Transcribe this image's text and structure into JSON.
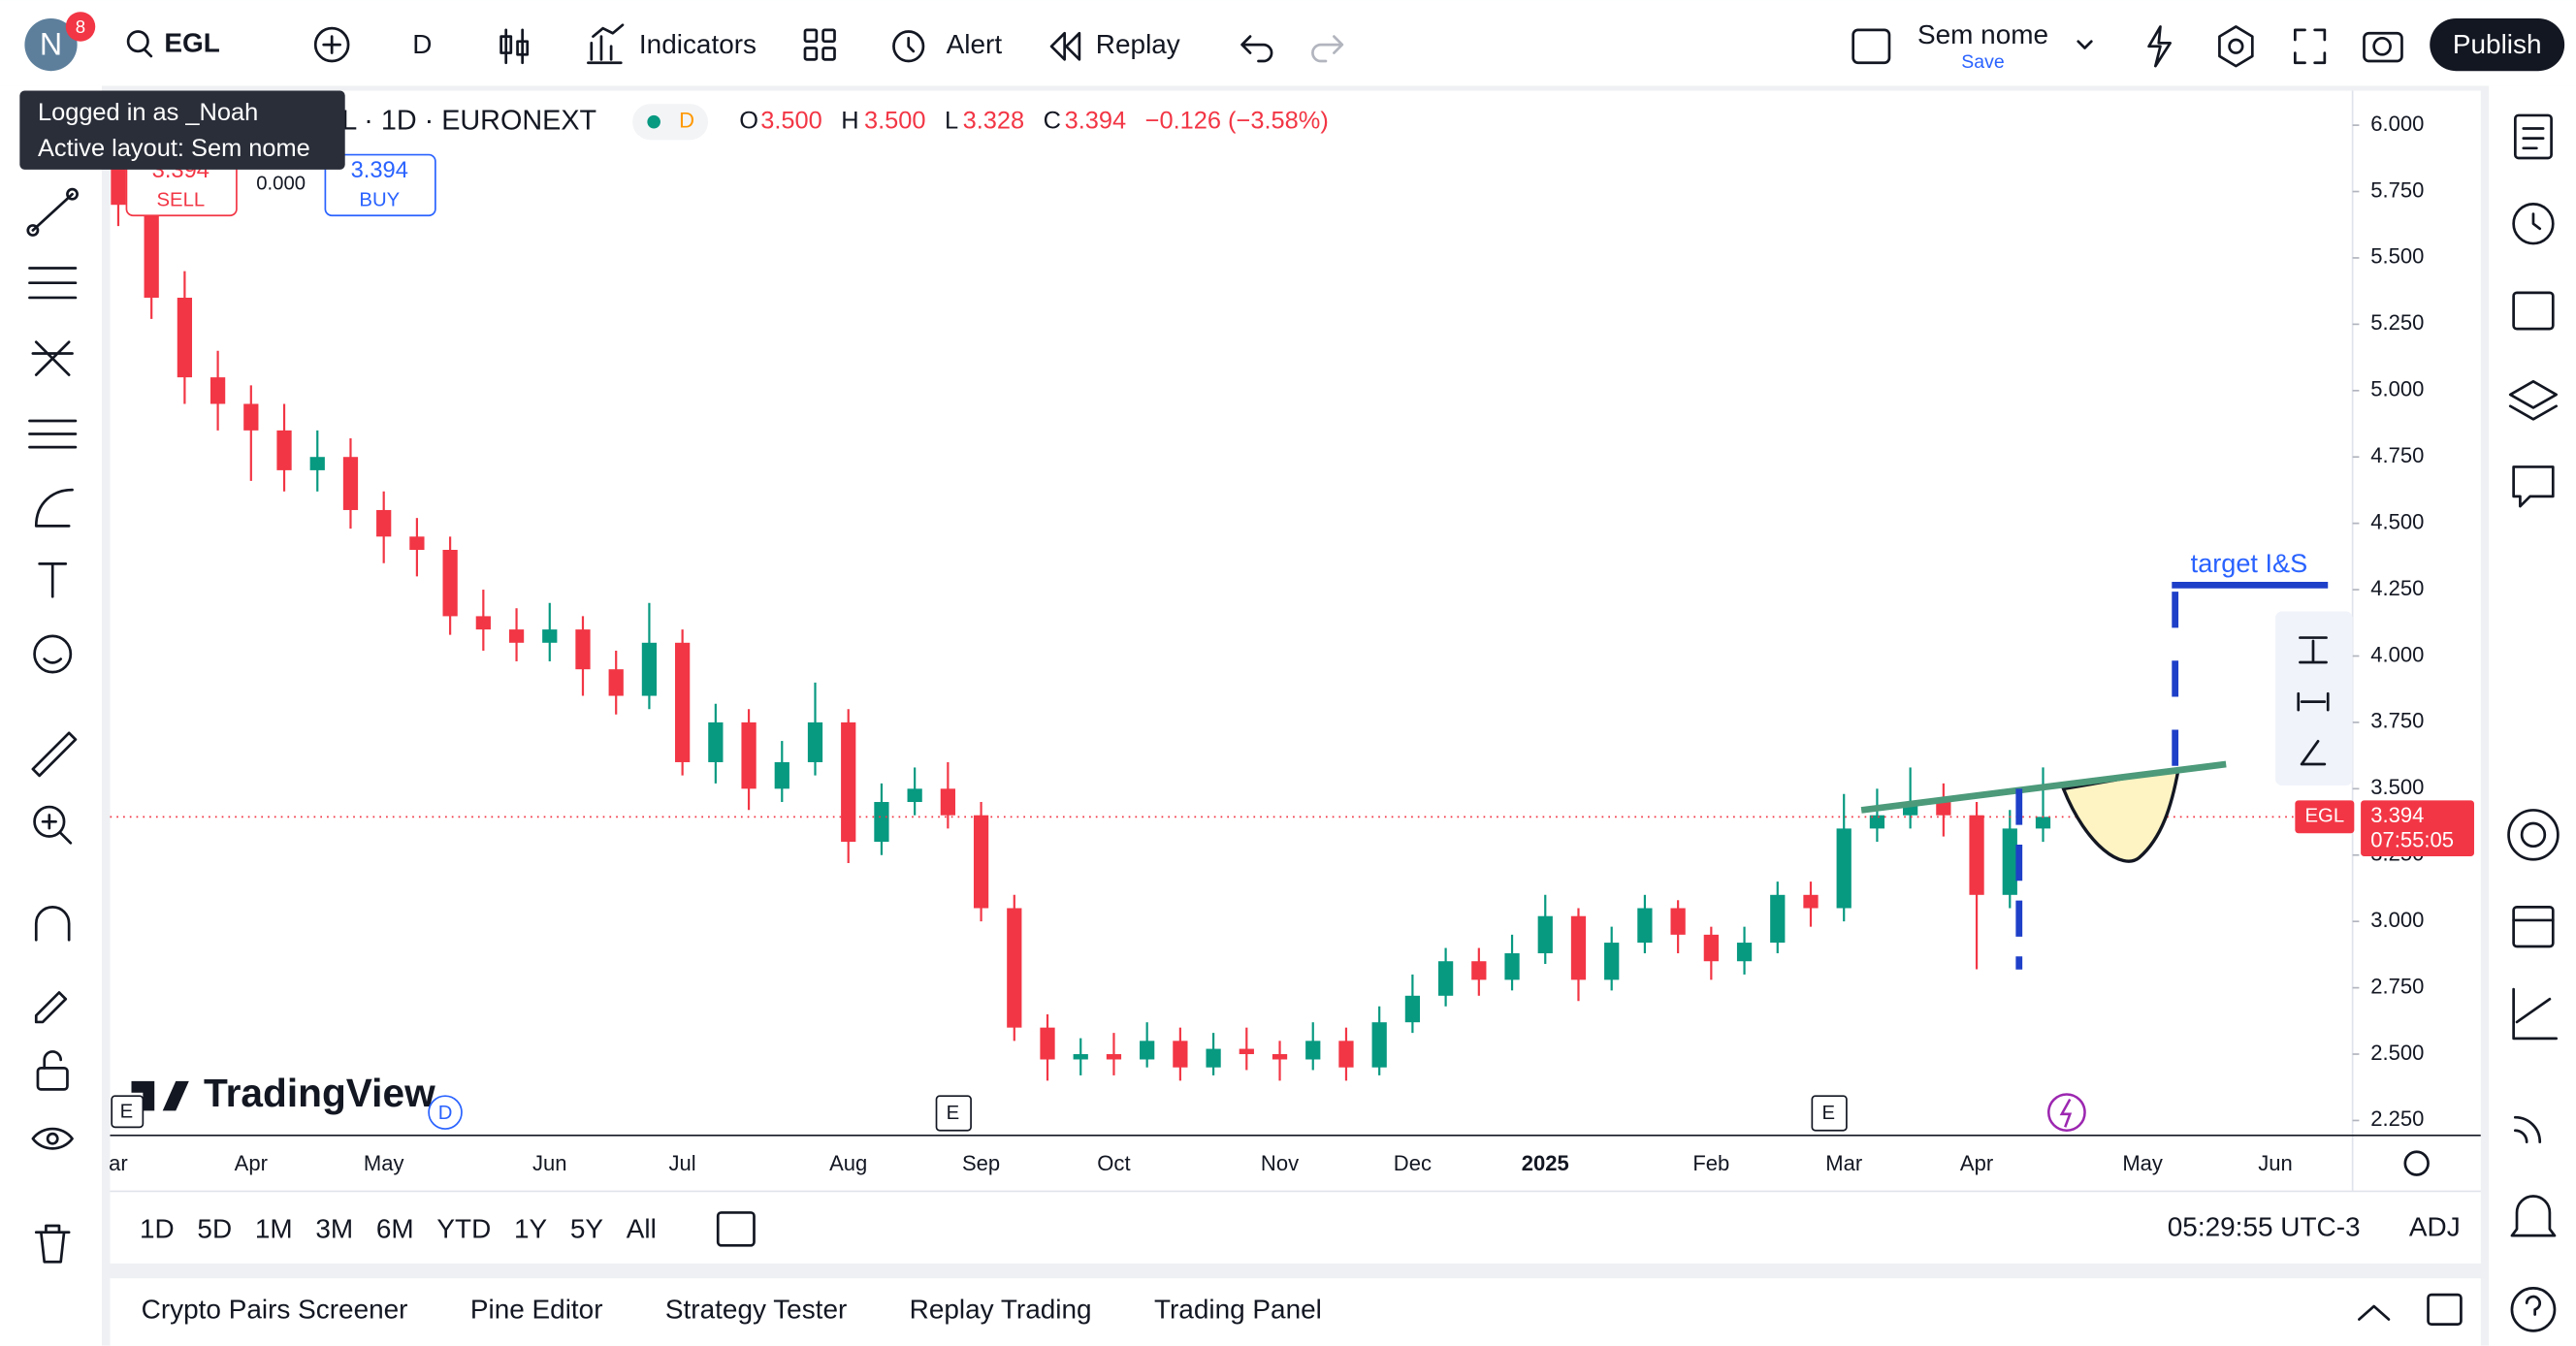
{
  "header": {
    "avatar": "N",
    "badge": "8",
    "symbol": "EGL",
    "interval": "D",
    "indicators": "Indicators",
    "alert": "Alert",
    "replay": "Replay",
    "layout_name": "Sem nome",
    "save": "Save",
    "publish": "Publish"
  },
  "tooltip": {
    "line1": "Logged in as _Noah",
    "line2": "Active layout: Sem nome"
  },
  "legend": {
    "title": "L · 1D · EURONEXT",
    "badge": "D",
    "o_label": "O",
    "o": "3.500",
    "h_label": "H",
    "h": "3.500",
    "l_label": "L",
    "l": "3.328",
    "c_label": "C",
    "c": "3.394",
    "change": "−0.126 (−3.58%)"
  },
  "trade": {
    "sell_price": "3.394",
    "sell": "SELL",
    "spread": "0.000",
    "buy_price": "3.394",
    "buy": "BUY"
  },
  "logo": "TradingView",
  "events": [
    "E",
    "D",
    "E",
    "E"
  ],
  "drawings": {
    "target_label": "target I&S"
  },
  "price_label": {
    "symbol": "EGL",
    "price": "3.394",
    "countdown": "07:55:05"
  },
  "chart_data": {
    "type": "candlestick",
    "up_color": "#089981",
    "down_color": "#f23645",
    "categories": [
      "ar",
      null,
      null,
      null,
      "Apr",
      null,
      null,
      null,
      "May",
      null,
      null,
      null,
      null,
      "Jun",
      null,
      null,
      null,
      "Jul",
      null,
      null,
      null,
      null,
      "Aug",
      null,
      null,
      null,
      "Sep",
      null,
      null,
      null,
      "Oct",
      null,
      null,
      null,
      null,
      "Nov",
      null,
      null,
      null,
      "Dec",
      null,
      null,
      null,
      "2025",
      null,
      null,
      null,
      null,
      "Feb",
      null,
      null,
      null,
      "Mar",
      null,
      null,
      null,
      "Apr",
      null,
      null,
      null,
      null,
      "May",
      null,
      null,
      null,
      "Jun"
    ],
    "series": [
      {
        "name": "EGL",
        "open": [
          6.0,
          5.7,
          5.35,
          5.05,
          4.95,
          4.85,
          4.7,
          4.75,
          4.55,
          4.45,
          4.4,
          4.15,
          4.1,
          4.05,
          4.1,
          3.95,
          3.85,
          4.05,
          3.6,
          3.75,
          3.5,
          3.6,
          3.75,
          3.3,
          3.45,
          3.5,
          3.4,
          3.05,
          2.6,
          2.48,
          2.5,
          2.48,
          2.55,
          2.45,
          2.52,
          2.5,
          2.48,
          2.55,
          2.45,
          2.62,
          2.72,
          2.85,
          2.78,
          2.88,
          3.02,
          2.78,
          2.92,
          3.05,
          2.95,
          2.85,
          2.92,
          3.1,
          3.05,
          3.35,
          3.4,
          3.45,
          3.4,
          3.1,
          3.35,
          null,
          null,
          null,
          null,
          null,
          null,
          null
        ],
        "high": [
          6.08,
          5.78,
          5.45,
          5.15,
          5.02,
          4.95,
          4.85,
          4.82,
          4.62,
          4.52,
          4.45,
          4.25,
          4.18,
          4.2,
          4.15,
          4.02,
          4.2,
          4.1,
          3.82,
          3.8,
          3.68,
          3.9,
          3.8,
          3.52,
          3.58,
          3.6,
          3.45,
          3.1,
          2.65,
          2.56,
          2.58,
          2.62,
          2.6,
          2.58,
          2.6,
          2.55,
          2.62,
          2.6,
          2.68,
          2.8,
          2.9,
          2.9,
          2.95,
          3.1,
          3.05,
          2.98,
          3.1,
          3.08,
          2.98,
          2.98,
          3.15,
          3.15,
          3.48,
          3.5,
          3.58,
          3.52,
          3.45,
          3.42,
          3.58,
          null,
          null,
          null,
          null,
          null,
          null,
          null
        ],
        "low": [
          5.62,
          5.27,
          4.95,
          4.85,
          4.66,
          4.62,
          4.62,
          4.48,
          4.35,
          4.3,
          4.08,
          4.02,
          3.98,
          3.98,
          3.85,
          3.78,
          3.8,
          3.55,
          3.52,
          3.42,
          3.45,
          3.55,
          3.22,
          3.25,
          3.4,
          3.35,
          3.0,
          2.55,
          2.4,
          2.42,
          2.42,
          2.45,
          2.4,
          2.42,
          2.44,
          2.4,
          2.44,
          2.4,
          2.42,
          2.58,
          2.68,
          2.72,
          2.74,
          2.84,
          2.7,
          2.74,
          2.88,
          2.88,
          2.78,
          2.8,
          2.88,
          2.98,
          3.0,
          3.3,
          3.35,
          3.32,
          2.82,
          3.05,
          3.3,
          null,
          null,
          null,
          null,
          null,
          null,
          null
        ],
        "close": [
          5.7,
          5.35,
          5.05,
          4.95,
          4.85,
          4.7,
          4.75,
          4.55,
          4.45,
          4.4,
          4.15,
          4.1,
          4.05,
          4.1,
          3.95,
          3.85,
          4.05,
          3.6,
          3.75,
          3.5,
          3.6,
          3.75,
          3.3,
          3.45,
          3.5,
          3.4,
          3.05,
          2.6,
          2.48,
          2.5,
          2.48,
          2.55,
          2.45,
          2.52,
          2.5,
          2.48,
          2.55,
          2.45,
          2.62,
          2.72,
          2.85,
          2.78,
          2.88,
          3.02,
          2.78,
          2.92,
          3.05,
          2.95,
          2.85,
          2.92,
          3.1,
          3.05,
          3.35,
          3.4,
          3.45,
          3.4,
          3.1,
          3.35,
          3.394,
          null,
          null,
          null,
          null,
          null,
          null,
          null
        ]
      }
    ],
    "ylim": [
      2.2,
      6.13
    ],
    "yticks": [
      {
        "value": 6,
        "label": "6.000"
      },
      {
        "value": 5.75,
        "label": "5.750"
      },
      {
        "value": 5.5,
        "label": "5.500"
      },
      {
        "value": 5.25,
        "label": "5.250"
      },
      {
        "value": 5,
        "label": "5.000"
      },
      {
        "value": 4.75,
        "label": "4.750"
      },
      {
        "value": 4.5,
        "label": "4.500"
      },
      {
        "value": 4.25,
        "label": "4.250"
      },
      {
        "value": 4,
        "label": "4.000"
      },
      {
        "value": 3.75,
        "label": "3.750"
      },
      {
        "value": 3.5,
        "label": "3.500"
      },
      {
        "value": 3.25,
        "label": "3.250"
      },
      {
        "value": 3,
        "label": "3.000"
      },
      {
        "value": 2.75,
        "label": "2.750"
      },
      {
        "value": 2.5,
        "label": "2.500"
      },
      {
        "value": 2.25,
        "label": "2.250"
      }
    ],
    "grid": false
  },
  "range_bar": {
    "ranges": [
      "1D",
      "5D",
      "1M",
      "3M",
      "6M",
      "YTD",
      "1Y",
      "5Y",
      "All"
    ],
    "clock": "05:29:55 UTC-3",
    "adj": "ADJ"
  },
  "bottom_tabs": [
    "Crypto Pairs Screener",
    "Pine Editor",
    "Strategy Tester",
    "Replay Trading",
    "Trading Panel"
  ]
}
